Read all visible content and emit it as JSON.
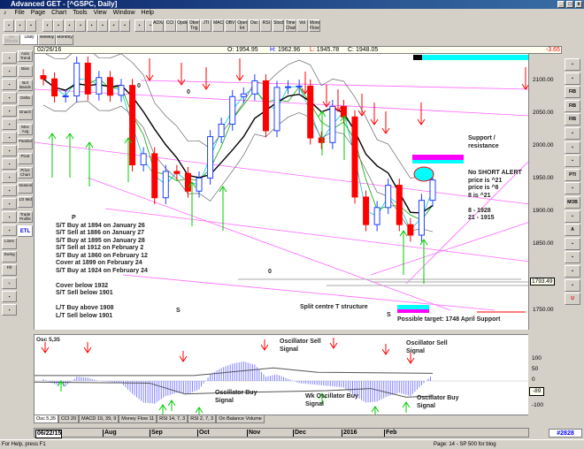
{
  "window": {
    "title": "Advanced GET - [^GSPC, Daily]"
  },
  "menu": [
    "File",
    "Page",
    "Chart",
    "Tools",
    "View",
    "Window",
    "Help"
  ],
  "toolbar": {
    "study_buttons": [
      "ADX/DMI",
      "CCI",
      "Opdex",
      "Oben Trig",
      "JTI",
      "MACD",
      "OBV",
      "Open Int",
      "Osc",
      "RSI",
      "Stock",
      "Time Chart",
      "Vol",
      "Money Flow"
    ]
  },
  "timeframes": [
    "60 Minute",
    "Daily",
    "Weekly",
    "Monthly"
  ],
  "left_tools": [
    "Auto Trend",
    "Bias",
    "Bol Bands",
    "Delta",
    "Dnach",
    "Mov Avg",
    "Parabolic",
    "Pivot",
    "Price Chart",
    "Seasonals",
    "1/2 Mid",
    "Trade Profile",
    "ETL"
  ],
  "left_tools_col1": [
    "Lines",
    "Swing",
    "Fill"
  ],
  "right_tools": [
    "FIB RET",
    "FIB EXT",
    "FIB TIME",
    "PTI",
    "MOB",
    "A"
  ],
  "info": {
    "date": "02/26/16",
    "open_label": "O:",
    "open": "1954.95",
    "high_label": "H:",
    "high": "1962.96",
    "low_label": "L:",
    "low": "1945.78",
    "close_label": "C:",
    "close": "1948.05",
    "change": "-3.65"
  },
  "price_axis": {
    "ticks": [
      "2100.00",
      "2050.00",
      "2000.00",
      "1950.00",
      "1900.00",
      "1850.00",
      "1750.00"
    ],
    "current": "1793.49"
  },
  "annotations": {
    "signals": [
      "P",
      "S/T Buy at 1894 on January 26",
      "S/T Sell at 1886 on January 27",
      "S/T Buy at 1895 on January 28",
      "S/T Sell at 1912 on February 2",
      "S/T Buy at  1860 on February 12",
      "Cover at 1899 on February 24",
      "S/T Buy at 1924 on February 24",
      "",
      "Cover below 1932",
      "S/T Sell below 1901",
      "",
      "L/T Buy above 1908",
      "L/T Sell below 1901"
    ],
    "support": "Support / resistance",
    "alert": [
      "No SHORT ALERT",
      "price is ^21",
      "price is ^8",
      "8 is ^21",
      "",
      "8   - 1928",
      "21 - 1915"
    ],
    "target": "Possible target: 1748 April Support",
    "split": "Split centre T structure",
    "wave_labels": [
      "0",
      "0",
      "0",
      "S",
      "S"
    ]
  },
  "oscillator": {
    "title": "Osc 5,35",
    "axis": [
      "100",
      "50",
      "0",
      "-50",
      "-100"
    ],
    "current": "-89",
    "labels": {
      "sell1": "Oscillator Sell Signal",
      "sell2": "Oscillator Sell Signal",
      "buy1": "Oscillator Buy Signal",
      "buy2": "Wk Oscillator Buy Signal",
      "buy3": "Oscillator Buy Signal"
    }
  },
  "tabs": [
    "Osc 5,35",
    "CCI 20",
    "MACD 19, 39, 9",
    "Money Flow 11",
    "RSI 14, 7, 3",
    "RSI 2, 7, 3",
    "On Balance Volume"
  ],
  "date_axis": [
    "06/22/15",
    "Aug",
    "Sep",
    "Oct",
    "Nov",
    "Dec",
    "2016",
    "Feb"
  ],
  "bar_count": "#2828",
  "status": {
    "help": "For Help, press F1",
    "page": "Page: 14 - SP 500 for blog"
  },
  "colors": {
    "up": "#2040ff",
    "down": "#ff0000",
    "buy_arrow": "#00cc00",
    "sell_arrow": "#ff0000",
    "osc_bar": "#8080ff",
    "trend": "#ff66ff",
    "highlight": "#00ffff"
  },
  "chart_data": {
    "type": "candlestick",
    "ylim": [
      1720,
      2140
    ],
    "closes": [
      2102,
      2076,
      2076,
      2126,
      2079,
      2104,
      2077,
      2092,
      1971,
      1988,
      1921,
      1961,
      1958,
      1931,
      1951,
      2014,
      2033,
      2075,
      2079,
      2099,
      2023,
      2089,
      2090,
      2091,
      2012,
      2005,
      2060,
      2044,
      1922,
      1880,
      1906,
      1940,
      1880,
      1864,
      1917,
      1948
    ],
    "oscillator_values": [
      8,
      -15,
      -25,
      20,
      15,
      0,
      -5,
      -10,
      -60,
      -100,
      -105,
      -70,
      -55,
      -60,
      -40,
      30,
      60,
      80,
      90,
      75,
      20,
      30,
      10,
      -10,
      -15,
      -20,
      -25,
      -30,
      -70,
      -100,
      -95,
      -70,
      -55,
      -70,
      -20,
      30
    ]
  }
}
